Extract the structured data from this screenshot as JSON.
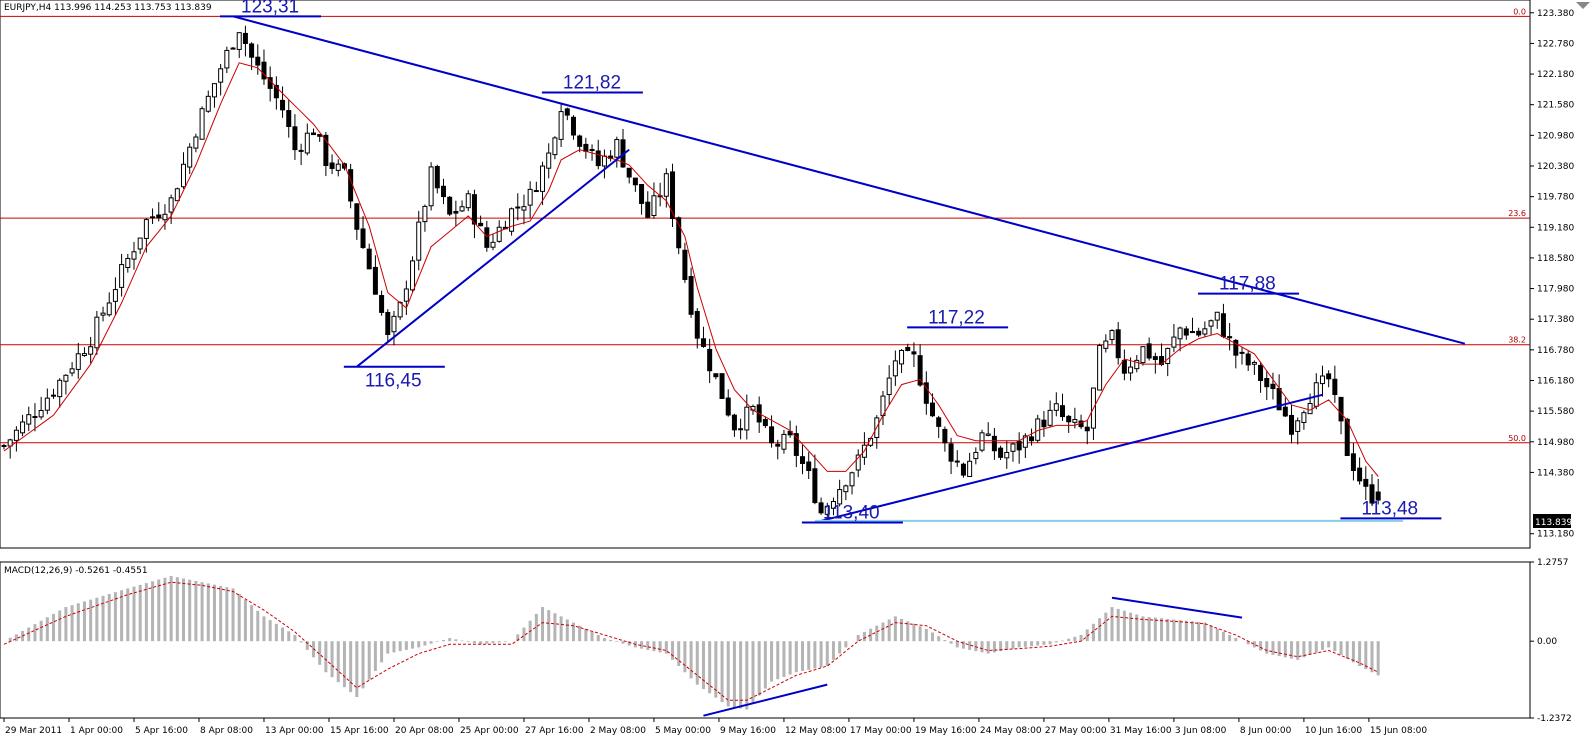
{
  "chart_data": [
    {
      "type": "candlestick",
      "title": "EURJPY,H4  113.996 114.253 113.753 113.839",
      "symbol": "EURJPY",
      "timeframe": "H4",
      "last_bar": {
        "open": 113.996,
        "high": 114.253,
        "low": 113.753,
        "close": 113.839
      },
      "current_price_label": "113.839",
      "ylim": [
        112.9,
        123.63
      ],
      "y_ticks": [
        "123.380",
        "122.780",
        "122.180",
        "121.580",
        "120.980",
        "120.380",
        "119.780",
        "119.180",
        "118.580",
        "117.980",
        "117.380",
        "116.780",
        "116.180",
        "115.580",
        "114.980",
        "114.380",
        "113.180"
      ],
      "x_ticks": [
        "29 Mar 2011",
        "1 Apr 00:00",
        "5 Apr 16:00",
        "8 Apr 08:00",
        "13 Apr 00:00",
        "15 Apr 16:00",
        "20 Apr 08:00",
        "25 Apr 00:00",
        "27 Apr 16:00",
        "2 May 08:00",
        "5 May 00:00",
        "9 May 16:00",
        "12 May 08:00",
        "17 May 00:00",
        "19 May 16:00",
        "24 May 08:00",
        "27 May 00:00",
        "31 May 16:00",
        "3 Jun 08:00",
        "8 Jun 00:00",
        "10 Jun 16:00",
        "15 Jun 08:00"
      ],
      "close_path": [
        [
          0,
          114.9
        ],
        [
          8,
          116.0
        ],
        [
          14,
          117.0
        ],
        [
          19,
          118.3
        ],
        [
          23,
          119.3
        ],
        [
          27,
          119.7
        ],
        [
          31,
          121.1
        ],
        [
          35,
          122.3
        ],
        [
          38,
          123.1
        ],
        [
          40,
          122.5
        ],
        [
          43,
          121.9
        ],
        [
          45,
          121.5
        ],
        [
          47,
          120.7
        ],
        [
          50,
          121.1
        ],
        [
          52,
          120.5
        ],
        [
          55,
          120.2
        ],
        [
          57,
          119.2
        ],
        [
          60,
          118.0
        ],
        [
          62,
          117.0
        ],
        [
          64,
          117.6
        ],
        [
          66,
          118.6
        ],
        [
          69,
          120.2
        ],
        [
          72,
          119.4
        ],
        [
          75,
          119.7
        ],
        [
          78,
          118.8
        ],
        [
          82,
          119.5
        ],
        [
          85,
          119.8
        ],
        [
          88,
          120.6
        ],
        [
          90,
          121.6
        ],
        [
          93,
          120.9
        ],
        [
          96,
          120.4
        ],
        [
          99,
          120.8
        ],
        [
          101,
          120.2
        ],
        [
          104,
          119.4
        ],
        [
          107,
          120.1
        ],
        [
          110,
          118.2
        ],
        [
          112,
          117.1
        ],
        [
          115,
          116.2
        ],
        [
          118,
          115.3
        ],
        [
          121,
          115.6
        ],
        [
          124,
          114.9
        ],
        [
          127,
          115.0
        ],
        [
          130,
          114.3
        ],
        [
          132,
          113.6
        ],
        [
          135,
          114.1
        ],
        [
          138,
          114.6
        ],
        [
          141,
          115.4
        ],
        [
          144,
          116.6
        ],
        [
          147,
          116.6
        ],
        [
          150,
          115.5
        ],
        [
          152,
          114.9
        ],
        [
          155,
          114.4
        ],
        [
          158,
          115.1
        ],
        [
          161,
          114.7
        ],
        [
          164,
          114.9
        ],
        [
          167,
          115.3
        ],
        [
          170,
          115.6
        ],
        [
          172,
          115.3
        ],
        [
          175,
          115.2
        ],
        [
          177,
          116.7
        ],
        [
          179,
          117.0
        ],
        [
          181,
          116.4
        ],
        [
          184,
          116.8
        ],
        [
          187,
          116.5
        ],
        [
          190,
          117.2
        ],
        [
          193,
          117.1
        ],
        [
          196,
          117.4
        ],
        [
          199,
          116.7
        ],
        [
          202,
          116.4
        ],
        [
          205,
          115.9
        ],
        [
          208,
          115.3
        ],
        [
          211,
          115.9
        ],
        [
          214,
          116.2
        ],
        [
          217,
          114.8
        ],
        [
          220,
          114.0
        ],
        [
          222,
          113.85
        ]
      ],
      "ma_path": [
        [
          0,
          114.8
        ],
        [
          8,
          115.5
        ],
        [
          14,
          116.5
        ],
        [
          19,
          117.7
        ],
        [
          23,
          118.8
        ],
        [
          27,
          119.4
        ],
        [
          31,
          120.4
        ],
        [
          35,
          121.6
        ],
        [
          38,
          122.4
        ],
        [
          41,
          122.3
        ],
        [
          45,
          121.8
        ],
        [
          50,
          121.2
        ],
        [
          55,
          120.4
        ],
        [
          59,
          119.2
        ],
        [
          62,
          117.9
        ],
        [
          65,
          117.6
        ],
        [
          69,
          118.8
        ],
        [
          72,
          119.1
        ],
        [
          75,
          119.4
        ],
        [
          78,
          119.0
        ],
        [
          82,
          119.2
        ],
        [
          85,
          119.3
        ],
        [
          88,
          119.9
        ],
        [
          90,
          120.5
        ],
        [
          93,
          120.7
        ],
        [
          96,
          120.6
        ],
        [
          99,
          120.5
        ],
        [
          101,
          120.4
        ],
        [
          104,
          120.0
        ],
        [
          107,
          119.7
        ],
        [
          110,
          119.0
        ],
        [
          112,
          118.0
        ],
        [
          115,
          116.8
        ],
        [
          118,
          116.0
        ],
        [
          121,
          115.6
        ],
        [
          124,
          115.4
        ],
        [
          127,
          115.2
        ],
        [
          130,
          114.8
        ],
        [
          133,
          114.4
        ],
        [
          136,
          114.4
        ],
        [
          139,
          114.8
        ],
        [
          142,
          115.5
        ],
        [
          145,
          116.1
        ],
        [
          148,
          116.2
        ],
        [
          151,
          115.7
        ],
        [
          154,
          115.1
        ],
        [
          157,
          115.0
        ],
        [
          161,
          115.0
        ],
        [
          164,
          115.0
        ],
        [
          167,
          115.2
        ],
        [
          170,
          115.3
        ],
        [
          173,
          115.3
        ],
        [
          175,
          115.4
        ],
        [
          178,
          116.1
        ],
        [
          181,
          116.6
        ],
        [
          184,
          116.5
        ],
        [
          187,
          116.5
        ],
        [
          190,
          116.8
        ],
        [
          193,
          117.0
        ],
        [
          196,
          117.1
        ],
        [
          199,
          116.9
        ],
        [
          202,
          116.7
        ],
        [
          205,
          116.2
        ],
        [
          208,
          115.7
        ],
        [
          211,
          115.6
        ],
        [
          214,
          115.8
        ],
        [
          217,
          115.4
        ],
        [
          220,
          114.6
        ],
        [
          222,
          114.3
        ]
      ],
      "fibonacci": [
        {
          "label": "0.0",
          "price": 123.31
        },
        {
          "label": "23.6",
          "price": 119.36
        },
        {
          "label": "38.2",
          "price": 116.88
        },
        {
          "label": "50.0",
          "price": 114.96
        }
      ],
      "annotations": [
        {
          "text": "123,31",
          "price": 123.31,
          "bar": 37
        },
        {
          "text": "121,82",
          "price": 121.82,
          "bar": 89
        },
        {
          "text": "116,45",
          "price": 116.45,
          "bar": 57
        },
        {
          "text": "117,22",
          "price": 117.22,
          "bar": 148
        },
        {
          "text": "117,88",
          "price": 117.88,
          "bar": 195
        },
        {
          "text": "113,40",
          "price": 113.4,
          "bar": 131
        },
        {
          "text": "113,48",
          "price": 113.48,
          "bar": 218
        }
      ],
      "trendlines": [
        {
          "name": "resistance",
          "points": [
            [
              37,
              123.31
            ],
            [
              236,
              116.9
            ]
          ]
        },
        {
          "name": "support-april",
          "points": [
            [
              57,
              116.45
            ],
            [
              101,
              120.7
            ]
          ]
        },
        {
          "name": "support-may-june",
          "points": [
            [
              131,
              113.4
            ],
            [
              213,
              115.9
            ]
          ]
        },
        {
          "name": "support-level",
          "points": [
            [
              131,
              113.43
            ],
            [
              226,
              113.43
            ]
          ]
        }
      ],
      "colors": {
        "candle": "#000000",
        "ma": "#cc0000",
        "fib": "#cc0000",
        "trendline": "#0000c8",
        "support": "#87ceeb",
        "annotation": "#1a1ab0"
      }
    },
    {
      "type": "histogram",
      "title": "MACD(12,26,9) -0.5261 -0.4551",
      "params": "12,26,9",
      "macd_value": -0.5261,
      "signal_value": -0.4551,
      "ylim": [
        -1.2372,
        1.2757
      ],
      "y_ticks": [
        "1.2757",
        "0.00",
        "-1.2372"
      ],
      "macd_path": [
        [
          0,
          0.0
        ],
        [
          10,
          0.55
        ],
        [
          20,
          0.85
        ],
        [
          27,
          1.05
        ],
        [
          32,
          0.95
        ],
        [
          37,
          0.85
        ],
        [
          42,
          0.4
        ],
        [
          47,
          0.1
        ],
        [
          52,
          -0.5
        ],
        [
          57,
          -0.9
        ],
        [
          62,
          -0.2
        ],
        [
          67,
          -0.1
        ],
        [
          72,
          0.05
        ],
        [
          77,
          -0.05
        ],
        [
          82,
          0.0
        ],
        [
          87,
          0.55
        ],
        [
          92,
          0.3
        ],
        [
          97,
          0.05
        ],
        [
          102,
          -0.1
        ],
        [
          107,
          -0.2
        ],
        [
          112,
          -0.7
        ],
        [
          117,
          -1.05
        ],
        [
          120,
          -1.1
        ],
        [
          124,
          -0.65
        ],
        [
          128,
          -0.5
        ],
        [
          133,
          -0.4
        ],
        [
          138,
          0.1
        ],
        [
          144,
          0.4
        ],
        [
          149,
          0.2
        ],
        [
          154,
          -0.1
        ],
        [
          159,
          -0.2
        ],
        [
          164,
          -0.1
        ],
        [
          169,
          -0.05
        ],
        [
          174,
          0.1
        ],
        [
          179,
          0.55
        ],
        [
          184,
          0.4
        ],
        [
          189,
          0.35
        ],
        [
          194,
          0.3
        ],
        [
          199,
          0.05
        ],
        [
          204,
          -0.2
        ],
        [
          209,
          -0.3
        ],
        [
          214,
          -0.1
        ],
        [
          219,
          -0.4
        ],
        [
          222,
          -0.55
        ]
      ],
      "signal_path": [
        [
          0,
          -0.05
        ],
        [
          10,
          0.4
        ],
        [
          20,
          0.75
        ],
        [
          27,
          0.95
        ],
        [
          32,
          0.9
        ],
        [
          37,
          0.8
        ],
        [
          42,
          0.5
        ],
        [
          47,
          0.15
        ],
        [
          52,
          -0.3
        ],
        [
          57,
          -0.75
        ],
        [
          62,
          -0.45
        ],
        [
          67,
          -0.2
        ],
        [
          72,
          -0.05
        ],
        [
          77,
          -0.05
        ],
        [
          82,
          -0.05
        ],
        [
          87,
          0.3
        ],
        [
          92,
          0.25
        ],
        [
          97,
          0.1
        ],
        [
          102,
          -0.05
        ],
        [
          107,
          -0.15
        ],
        [
          112,
          -0.55
        ],
        [
          117,
          -0.95
        ],
        [
          120,
          -0.95
        ],
        [
          124,
          -0.75
        ],
        [
          128,
          -0.55
        ],
        [
          133,
          -0.4
        ],
        [
          138,
          0.0
        ],
        [
          144,
          0.3
        ],
        [
          149,
          0.25
        ],
        [
          154,
          0.0
        ],
        [
          159,
          -0.15
        ],
        [
          164,
          -0.12
        ],
        [
          169,
          -0.08
        ],
        [
          174,
          0.0
        ],
        [
          179,
          0.4
        ],
        [
          184,
          0.35
        ],
        [
          189,
          0.32
        ],
        [
          194,
          0.28
        ],
        [
          199,
          0.1
        ],
        [
          204,
          -0.15
        ],
        [
          209,
          -0.25
        ],
        [
          214,
          -0.15
        ],
        [
          219,
          -0.35
        ],
        [
          222,
          -0.5
        ]
      ],
      "trendlines": [
        {
          "name": "macd-divergence-1",
          "points": [
            [
              113,
              -1.2
            ],
            [
              133,
              -0.7
            ]
          ]
        },
        {
          "name": "macd-divergence-2",
          "points": [
            [
              179,
              0.7
            ],
            [
              200,
              0.38
            ]
          ]
        }
      ]
    }
  ]
}
